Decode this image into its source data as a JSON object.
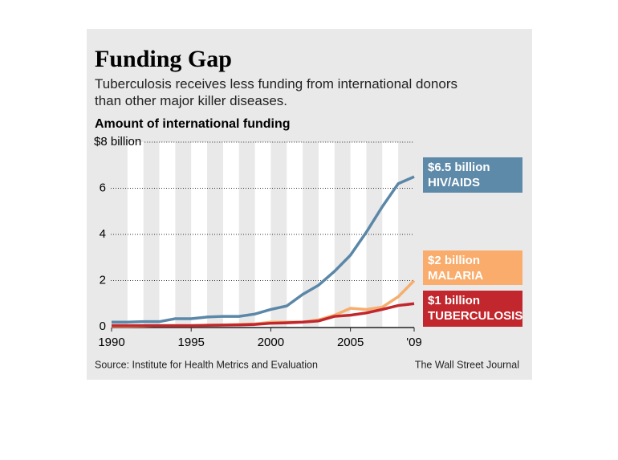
{
  "chart_data": {
    "type": "line",
    "title": "Funding Gap",
    "subtitle": "Tuberculosis receives less funding from international donors than other major killer diseases.",
    "ylabel": "Amount of international funding",
    "source": "Source: Institute for Health Metrics and Evaluation",
    "credit": "The Wall Street Journal",
    "x": [
      1990,
      1991,
      1992,
      1993,
      1994,
      1995,
      1996,
      1997,
      1998,
      1999,
      2000,
      2001,
      2002,
      2003,
      2004,
      2005,
      2006,
      2007,
      2008,
      2009
    ],
    "series": [
      {
        "name": "HIV/AIDS",
        "color": "#5b87a8",
        "values": [
          0.2,
          0.2,
          0.22,
          0.22,
          0.35,
          0.35,
          0.42,
          0.45,
          0.45,
          0.55,
          0.75,
          0.9,
          1.4,
          1.8,
          2.4,
          3.1,
          4.1,
          5.2,
          6.2,
          6.5
        ],
        "value_labels": [
          null,
          null,
          null,
          null,
          null,
          null,
          null,
          null,
          null,
          null,
          null,
          null,
          null,
          null,
          null,
          null,
          null,
          null,
          null,
          "$6.5 billion"
        ]
      },
      {
        "name": "MALARIA",
        "color": "#f6ae6e",
        "values": [
          0.02,
          0.02,
          0.03,
          0.05,
          0.05,
          0.05,
          0.07,
          0.08,
          0.1,
          0.12,
          0.2,
          0.2,
          0.2,
          0.3,
          0.5,
          0.8,
          0.75,
          0.85,
          1.3,
          2.0
        ],
        "value_labels": [
          null,
          null,
          null,
          null,
          null,
          null,
          null,
          null,
          null,
          null,
          null,
          null,
          null,
          null,
          null,
          null,
          null,
          null,
          null,
          "$2 billion"
        ]
      },
      {
        "name": "TUBERCULOSIS",
        "color": "#c1272d",
        "values": [
          0.05,
          0.05,
          0.05,
          0.05,
          0.05,
          0.05,
          0.06,
          0.07,
          0.08,
          0.1,
          0.15,
          0.17,
          0.2,
          0.25,
          0.45,
          0.5,
          0.6,
          0.75,
          0.92,
          1.0
        ],
        "value_labels": [
          null,
          null,
          null,
          null,
          null,
          null,
          null,
          null,
          null,
          null,
          null,
          null,
          null,
          null,
          null,
          null,
          null,
          null,
          null,
          "$1 billion"
        ]
      }
    ],
    "xlim": [
      1990,
      2009
    ],
    "xticks": [
      1990,
      1995,
      2000,
      2005,
      {
        "value": 2009,
        "label": "'09"
      }
    ],
    "ylim": [
      0,
      8
    ],
    "yticks": [
      0,
      2,
      4,
      6,
      {
        "value": 8,
        "label": "$8 billion"
      }
    ],
    "grid": true
  }
}
